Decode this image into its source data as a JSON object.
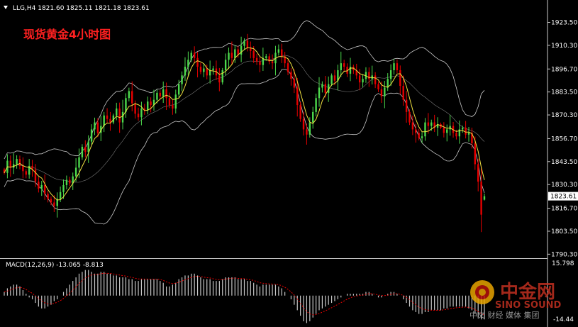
{
  "header": {
    "symbol_line": "LLG,H4  1821.60 1825.11 1821.18 1823.61",
    "overlay_title": "现货黄金4小时图"
  },
  "macd": {
    "label": "MACD(12,26,9) -13.065 -8.813",
    "axis_top": "15.798",
    "axis_bottom": "-14.44"
  },
  "watermark": {
    "brand_cn": "中金网",
    "brand_en": "SINO SOUND",
    "slogan": "中文 财经 媒体 集团"
  },
  "colors": {
    "background": "#000000",
    "up_candle": "#4CD94C",
    "down_candle": "#E60000",
    "bollinger": "#C8C8C8",
    "ma": "#F0E040",
    "macd_hist": "#C8C8C8",
    "macd_signal": "#E60000",
    "title_red": "#FF2020",
    "current_price_bg": "#FFFFFF"
  },
  "chart_data": {
    "type": "candlestick",
    "symbol": "LLG",
    "timeframe": "H4",
    "last_bar": {
      "open": 1821.6,
      "high": 1825.11,
      "low": 1821.18,
      "close": 1823.61
    },
    "current_price": "1823.61",
    "y_axis_ticks": [
      "1923.50",
      "1910.30",
      "1896.70",
      "1883.50",
      "1870.30",
      "1856.70",
      "1843.50",
      "1830.30",
      "1816.70",
      "1803.50",
      "1790.30"
    ],
    "ylim": [
      1788,
      1929
    ],
    "closes": [
      1837,
      1844,
      1840,
      1842,
      1845,
      1841,
      1838,
      1836,
      1841,
      1839,
      1832,
      1828,
      1830,
      1825,
      1822,
      1820,
      1818,
      1822,
      1826,
      1830,
      1833,
      1831,
      1835,
      1840,
      1846,
      1852,
      1849,
      1855,
      1862,
      1866,
      1860,
      1864,
      1870,
      1868,
      1866,
      1870,
      1874,
      1866,
      1872,
      1880,
      1884,
      1877,
      1871,
      1869,
      1874,
      1873,
      1878,
      1876,
      1879,
      1883,
      1881,
      1885,
      1880,
      1876,
      1874,
      1882,
      1888,
      1893,
      1898,
      1902,
      1906,
      1903,
      1898,
      1895,
      1897,
      1893,
      1896,
      1897,
      1893,
      1889,
      1896,
      1902,
      1906,
      1903,
      1908,
      1905,
      1910,
      1913,
      1909,
      1907,
      1903,
      1901,
      1899,
      1903,
      1904,
      1901,
      1900,
      1906,
      1908,
      1904,
      1900,
      1895,
      1891,
      1886,
      1876,
      1868,
      1862,
      1859,
      1866,
      1872,
      1880,
      1886,
      1888,
      1883,
      1888,
      1893,
      1890,
      1896,
      1900,
      1898,
      1894,
      1898,
      1896,
      1893,
      1889,
      1891,
      1895,
      1891,
      1893,
      1888,
      1885,
      1881,
      1886,
      1891,
      1896,
      1900,
      1896,
      1887,
      1879,
      1872,
      1866,
      1862,
      1860,
      1857,
      1858,
      1866,
      1864,
      1866,
      1863,
      1865,
      1863,
      1860,
      1862,
      1864,
      1860,
      1858,
      1862,
      1863,
      1859,
      1860,
      1854,
      1842,
      1832,
      1813,
      1823.61
    ],
    "macd_histogram": [
      2,
      4,
      5,
      6,
      6,
      5,
      3,
      1,
      -1,
      -2,
      -4,
      -6,
      -7,
      -7,
      -6,
      -5,
      -3,
      -2,
      0,
      2,
      4,
      6,
      8,
      10,
      12,
      13,
      14,
      14,
      13,
      12,
      12,
      13,
      13,
      12,
      12,
      11,
      11,
      10,
      10,
      10,
      9,
      9,
      8,
      8,
      9,
      9,
      9,
      9,
      9,
      9,
      8,
      7,
      5,
      5,
      6,
      7,
      9,
      10,
      11,
      11,
      12,
      12,
      11,
      10,
      9,
      9,
      9,
      8,
      8,
      8,
      9,
      10,
      10,
      10,
      10,
      9,
      9,
      9,
      8,
      8,
      7,
      6,
      5,
      6,
      6,
      6,
      6,
      6,
      5,
      4,
      2,
      0,
      -2,
      -5,
      -8,
      -11,
      -14,
      -15,
      -14,
      -12,
      -10,
      -8,
      -7,
      -6,
      -5,
      -4,
      -3,
      -2,
      -1,
      0,
      1,
      1,
      1,
      1,
      1,
      1,
      2,
      2,
      1,
      0,
      -1,
      -1,
      0,
      1,
      2,
      2,
      1,
      0,
      -2,
      -4,
      -6,
      -8,
      -9,
      -10,
      -10,
      -9,
      -9,
      -8,
      -8,
      -8,
      -8,
      -7,
      -7,
      -6,
      -6,
      -6,
      -6,
      -6,
      -6,
      -7,
      -8,
      -10,
      -12,
      -13,
      -13
    ],
    "macd_range": [
      -14.44,
      15.798
    ]
  }
}
